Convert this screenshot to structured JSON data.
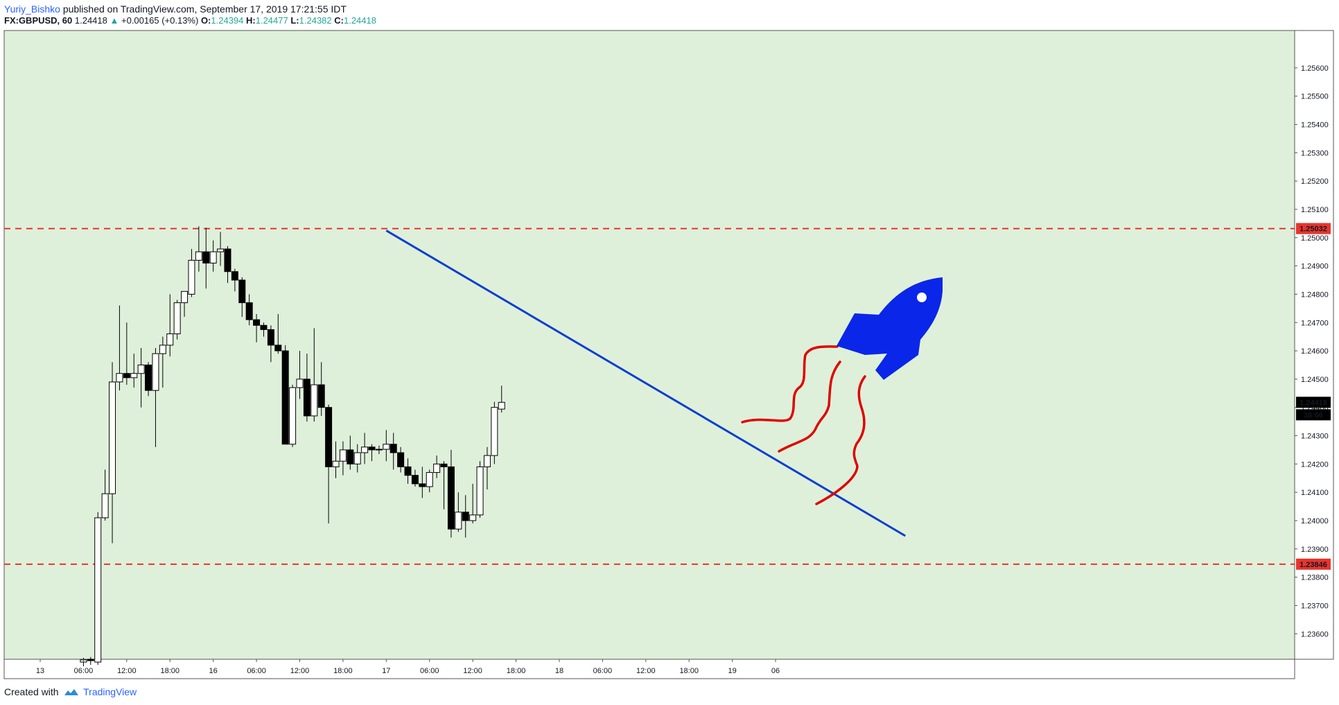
{
  "header": {
    "author": "Yuriy_Bishko",
    "published_text": "published on TradingView.com, September 17, 2019 17:21:55 IDT",
    "symbol": "FX:GBPUSD, 60",
    "last": "1.24418",
    "change": "+0.00165 (+0.13%)",
    "o_label": "O:",
    "o_value": "1.24394",
    "h_label": "H:",
    "h_value": "1.24477",
    "l_label": "L:",
    "l_value": "1.24382",
    "c_label": "C:",
    "c_value": "1.24418"
  },
  "footer": {
    "created_with": "Created with",
    "brand": "TradingView"
  },
  "colors": {
    "background": "#dff0da",
    "trendline": "#0e3fcf",
    "level": "#e8342e",
    "rocket": "#0a26e8",
    "drawing": "#e00000",
    "candle_up": "#ffffff",
    "candle_down": "#000000"
  },
  "chart_data": {
    "type": "candlestick",
    "symbol": "FX:GBPUSD",
    "timeframe": "60",
    "ylim": [
      1.2351,
      1.25732
    ],
    "y_ticks": [
      "1.25600",
      "1.25500",
      "1.25400",
      "1.25300",
      "1.25200",
      "1.25100",
      "1.25000",
      "1.24900",
      "1.24800",
      "1.24700",
      "1.24600",
      "1.24500",
      "1.24400",
      "1.24300",
      "1.24200",
      "1.24100",
      "1.24000",
      "1.23900",
      "1.23800",
      "1.23700",
      "1.23600"
    ],
    "x_ticks": [
      "13",
      "06:00",
      "12:00",
      "18:00",
      "16",
      "06:00",
      "12:00",
      "18:00",
      "17",
      "06:00",
      "12:00",
      "18:00",
      "18",
      "06:00",
      "12:00",
      "18:00",
      "19",
      "06"
    ],
    "price_labels": {
      "resistance": "1.25032",
      "support": "1.23846",
      "last": "1.24418",
      "countdown": "38:06"
    },
    "levels": [
      1.25032,
      1.23846
    ],
    "trendline": {
      "from": [
        53,
        1.25025
      ],
      "to": [
        125,
        1.23946
      ]
    },
    "candles": [
      [
        11.0,
        1.235,
        1.23515,
        1.23485,
        1.23508
      ],
      [
        12.0,
        1.2351,
        1.23518,
        1.2349,
        1.23505
      ],
      [
        13.0,
        1.235,
        1.2403,
        1.2349,
        1.2401
      ],
      [
        14.0,
        1.2401,
        1.2418,
        1.24,
        1.24095
      ],
      [
        15.0,
        1.24095,
        1.2456,
        1.2392,
        1.2449
      ],
      [
        16.0,
        1.2449,
        1.2476,
        1.2446,
        1.2452
      ],
      [
        17.0,
        1.2452,
        1.247,
        1.2448,
        1.24505
      ],
      [
        18.0,
        1.24505,
        1.2459,
        1.2447,
        1.2452
      ],
      [
        19.0,
        1.2452,
        1.2461,
        1.244,
        1.2455
      ],
      [
        20.0,
        1.2455,
        1.2456,
        1.2444,
        1.2446
      ],
      [
        21.0,
        1.2446,
        1.2461,
        1.2426,
        1.2459
      ],
      [
        22.0,
        1.2459,
        1.2465,
        1.2447,
        1.2462
      ],
      [
        23.0,
        1.2462,
        1.248,
        1.2458,
        1.2466
      ],
      [
        24.0,
        1.2466,
        1.2478,
        1.2464,
        1.2477
      ],
      [
        25.0,
        1.2477,
        1.2481,
        1.2472,
        1.2481
      ],
      [
        26.0,
        1.248,
        1.2496,
        1.2479,
        1.2492
      ],
      [
        27.0,
        1.2492,
        1.2504,
        1.2488,
        1.2495
      ],
      [
        28.0,
        1.2495,
        1.25035,
        1.2482,
        1.2491
      ],
      [
        29.0,
        1.2491,
        1.2499,
        1.2488,
        1.2495
      ],
      [
        30.0,
        1.2495,
        1.2502,
        1.249,
        1.2496
      ],
      [
        31.0,
        1.2496,
        1.2497,
        1.2484,
        1.2488
      ],
      [
        32.0,
        1.2488,
        1.2489,
        1.2481,
        1.2485
      ],
      [
        33.0,
        1.2485,
        1.2486,
        1.2472,
        1.2477
      ],
      [
        34.0,
        1.2477,
        1.248,
        1.2469,
        1.2471
      ],
      [
        35.0,
        1.2471,
        1.2473,
        1.2463,
        1.2469
      ],
      [
        36.0,
        1.2469,
        1.247,
        1.2465,
        1.24675
      ],
      [
        37.0,
        1.24675,
        1.2469,
        1.2456,
        1.2462
      ],
      [
        38.0,
        1.2462,
        1.2473,
        1.2459,
        1.246
      ],
      [
        39.0,
        1.246,
        1.2462,
        1.2427,
        1.2427
      ],
      [
        40.0,
        1.2427,
        1.2448,
        1.2426,
        1.2447
      ],
      [
        41.0,
        1.2447,
        1.246,
        1.2443,
        1.245
      ],
      [
        42.0,
        1.245,
        1.2459,
        1.2435,
        1.2437
      ],
      [
        43.0,
        1.2437,
        1.2468,
        1.2435,
        1.2448
      ],
      [
        44.0,
        1.2448,
        1.2456,
        1.2437,
        1.244
      ],
      [
        45.0,
        1.244,
        1.2441,
        1.2399,
        1.2419
      ],
      [
        46.0,
        1.2419,
        1.2428,
        1.2415,
        1.2421
      ],
      [
        47.0,
        1.2421,
        1.2428,
        1.2416,
        1.2425
      ],
      [
        48.0,
        1.2425,
        1.243,
        1.2418,
        1.242
      ],
      [
        49.0,
        1.242,
        1.2427,
        1.2417,
        1.2424
      ],
      [
        50.0,
        1.2424,
        1.2431,
        1.242,
        1.2426
      ],
      [
        51.0,
        1.2426,
        1.2427,
        1.2421,
        1.2425
      ],
      [
        52.0,
        1.2425,
        1.24265,
        1.24235,
        1.24252
      ],
      [
        53.0,
        1.24252,
        1.2432,
        1.2421,
        1.2427
      ],
      [
        54.0,
        1.2427,
        1.2431,
        1.2418,
        1.2424
      ],
      [
        55.0,
        1.2424,
        1.2426,
        1.2417,
        1.2419
      ],
      [
        56.0,
        1.2419,
        1.2422,
        1.2413,
        1.2416
      ],
      [
        57.0,
        1.2416,
        1.2418,
        1.2412,
        1.2413
      ],
      [
        58.0,
        1.2413,
        1.2419,
        1.2408,
        1.2412
      ],
      [
        59.0,
        1.2412,
        1.2418,
        1.241,
        1.2417
      ],
      [
        60.0,
        1.2417,
        1.2423,
        1.2415,
        1.242
      ],
      [
        61.0,
        1.242,
        1.2421,
        1.2404,
        1.2419
      ],
      [
        62.0,
        1.2419,
        1.2425,
        1.2394,
        1.2397
      ],
      [
        63.0,
        1.2397,
        1.241,
        1.2396,
        1.2403
      ],
      [
        64.0,
        1.2403,
        1.2409,
        1.2394,
        1.24
      ],
      [
        65.0,
        1.24,
        1.2413,
        1.2399,
        1.2402
      ],
      [
        66.0,
        1.2402,
        1.2421,
        1.2401,
        1.2419
      ],
      [
        67.0,
        1.2419,
        1.2426,
        1.2411,
        1.2423
      ],
      [
        68.0,
        1.2423,
        1.2442,
        1.242,
        1.244
      ],
      [
        69.0,
        1.24394,
        1.24477,
        1.24382,
        1.24418
      ]
    ]
  }
}
